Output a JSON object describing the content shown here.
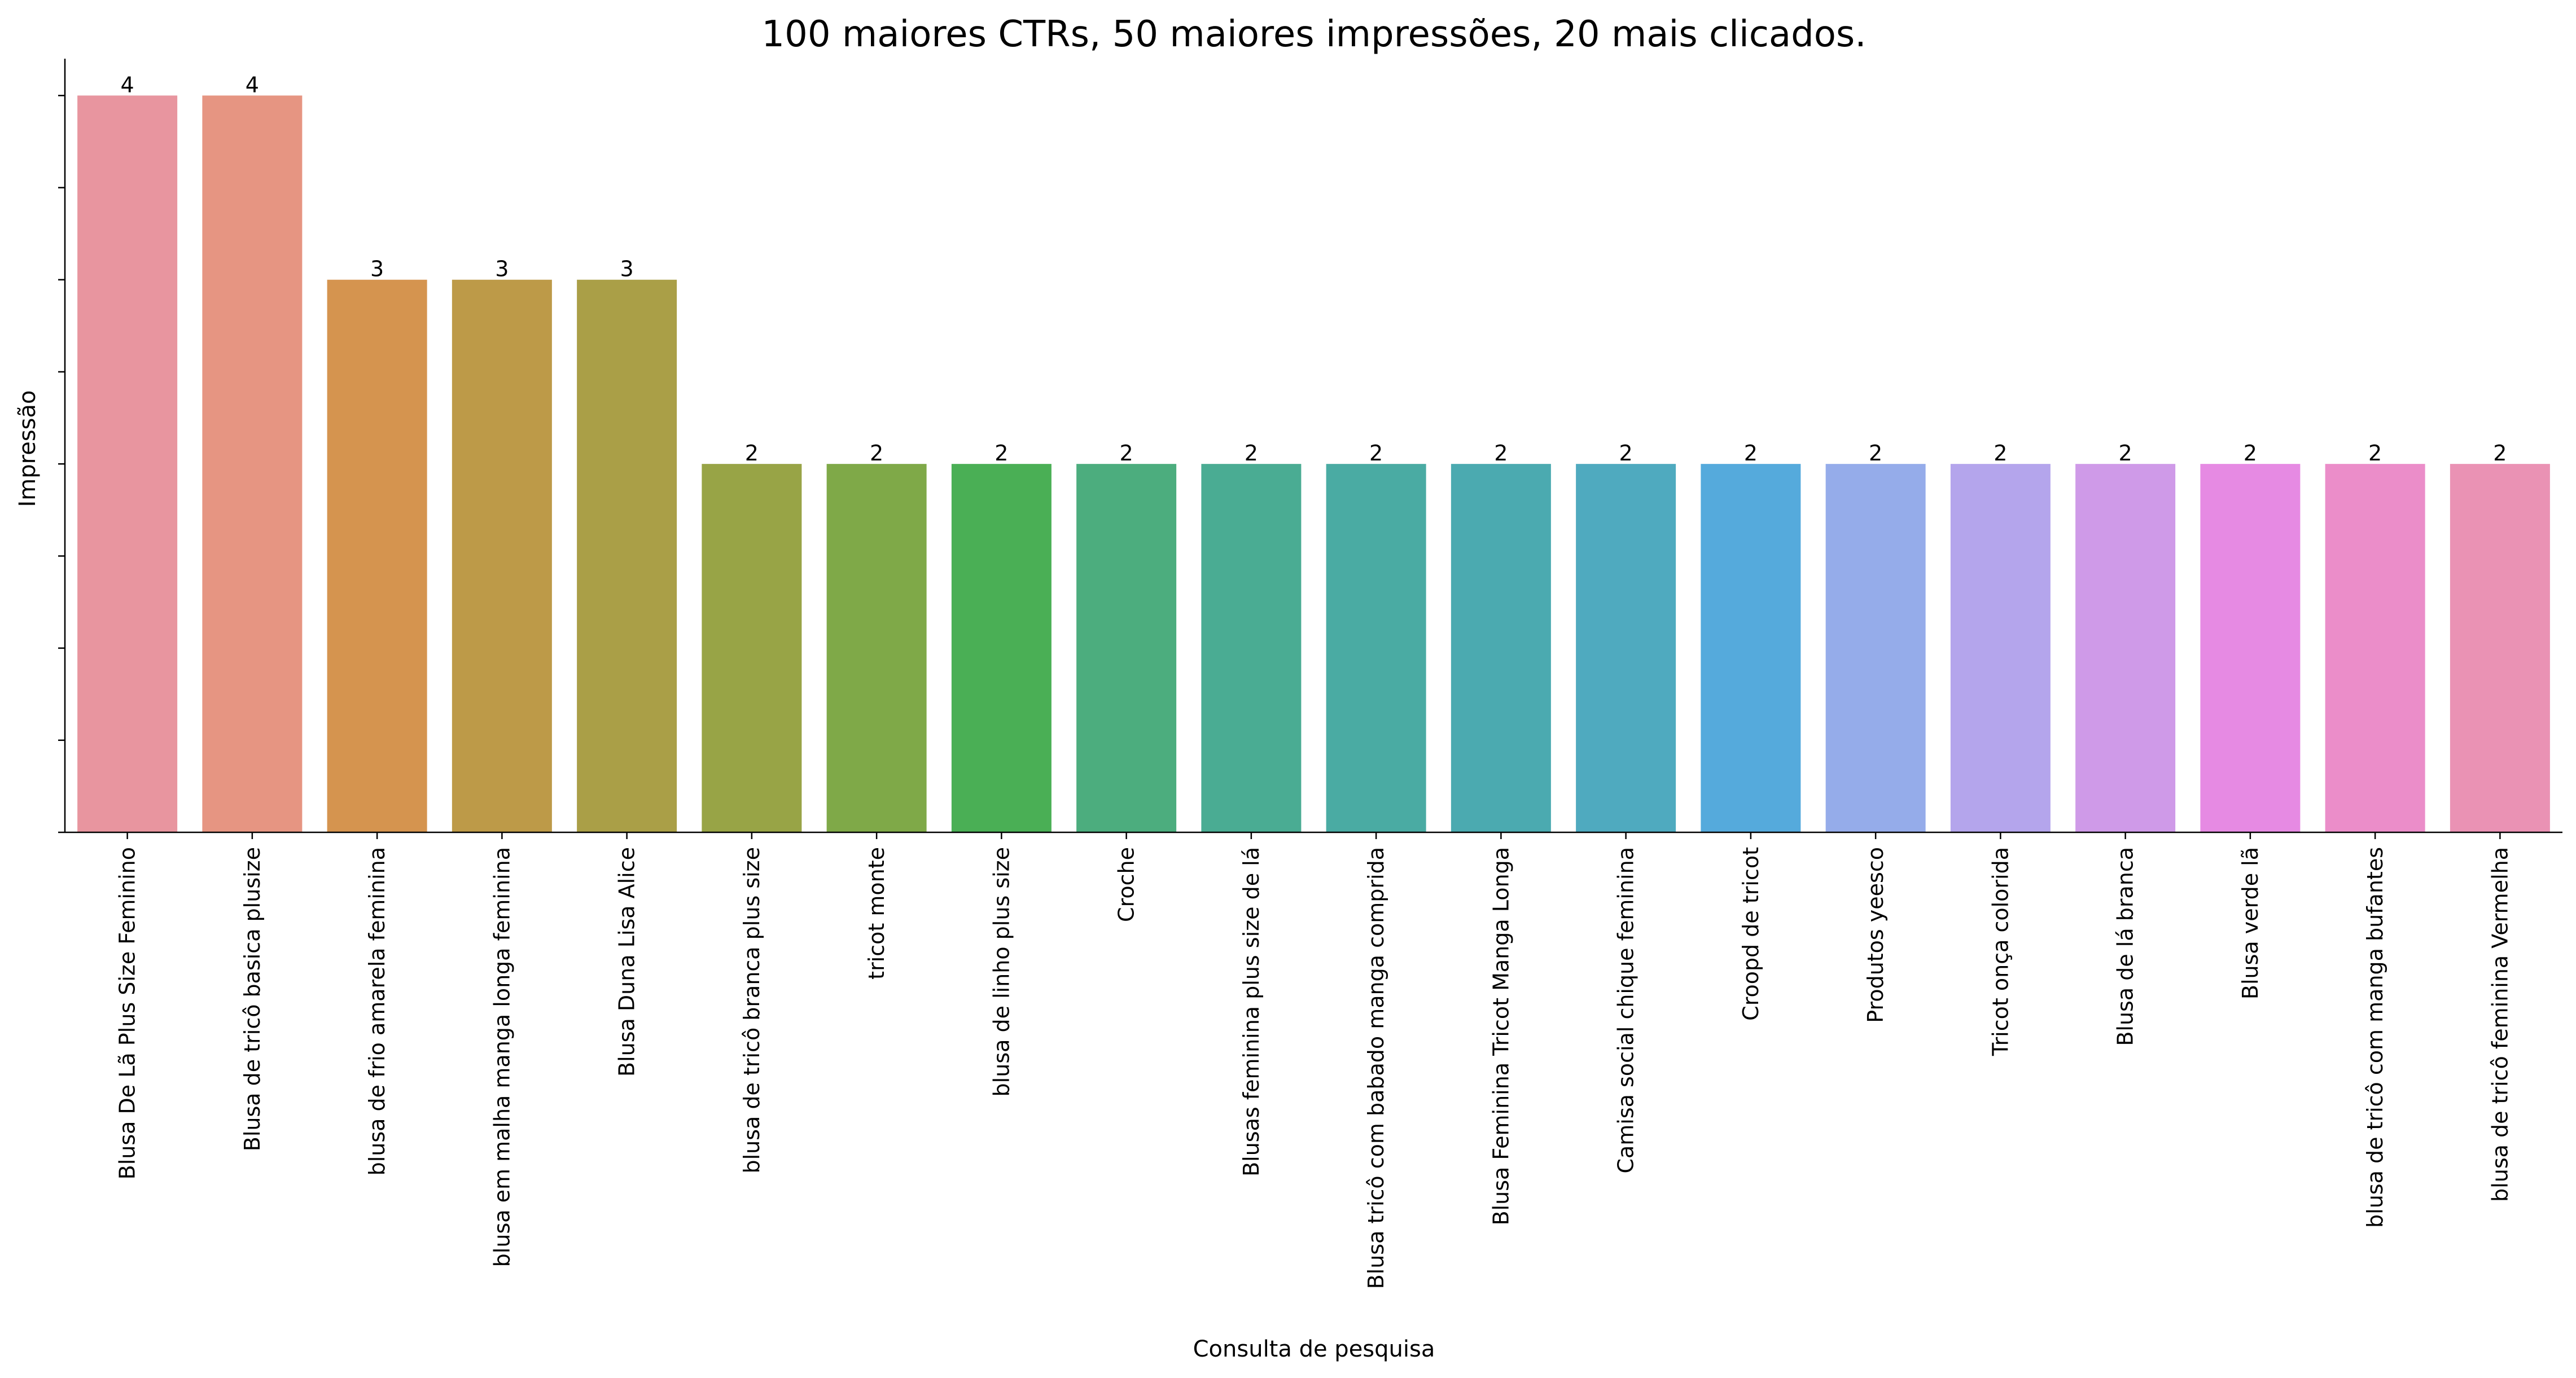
{
  "chart_data": {
    "type": "bar",
    "title": "100 maiores CTRs, 50 maiores impressões, 20 mais clicados.",
    "xlabel": "Consulta de pesquisa",
    "ylabel": "Impressão",
    "ylim": [
      0,
      4.2
    ],
    "y_tick_values": [
      0,
      0.5,
      1,
      1.5,
      2,
      2.5,
      3,
      3.5,
      4
    ],
    "y_tick_labels_visible": false,
    "grid": false,
    "categories": [
      "Blusa De Lã Plus Size Feminino",
      "Blusa de tricô basica plusize",
      "blusa de frio amarela feminina",
      "blusa em malha manga longa feminina",
      "Blusa Duna Lisa Alice",
      "blusa de tricô branca plus size",
      "tricot monte",
      "blusa de linho plus size",
      "Croche",
      "Blusas feminina plus size de lá",
      "Blusa tricô com babado manga comprida",
      "Blusa Feminina Tricot Manga Longa",
      "Camisa social chique feminina",
      "Croopd de tricot",
      "Produtos yeesco",
      "Tricot onça colorida",
      "Blusa de lá branca",
      "Blusa verde lã",
      "blusa de tricô com manga bufantes",
      "blusa de tricô feminina Vermelha"
    ],
    "values": [
      4,
      4,
      3,
      3,
      3,
      2,
      2,
      2,
      2,
      2,
      2,
      2,
      2,
      2,
      2,
      2,
      2,
      2,
      2,
      2
    ],
    "data_labels": [
      "4",
      "4",
      "3",
      "3",
      "3",
      "2",
      "2",
      "2",
      "2",
      "2",
      "2",
      "2",
      "2",
      "2",
      "2",
      "2",
      "2",
      "2",
      "2",
      "2"
    ],
    "colors": [
      "#e8959f",
      "#e69582",
      "#d5944f",
      "#bd9a48",
      "#aa9f47",
      "#98a446",
      "#7fa948",
      "#4aaf55",
      "#4cad7e",
      "#4aac93",
      "#4aaba3",
      "#4baab0",
      "#4faabf",
      "#55aadc",
      "#95acea",
      "#b4a5ec",
      "#cf9ae8",
      "#e68ae3",
      "#eb8dc9",
      "#ea92b4"
    ]
  }
}
